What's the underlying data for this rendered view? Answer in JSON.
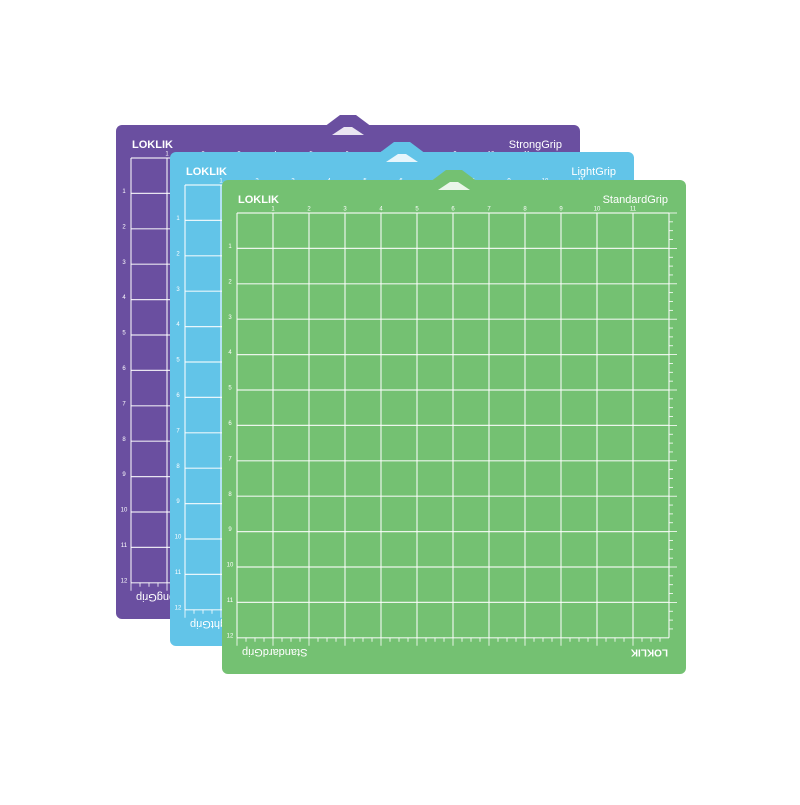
{
  "mats": [
    {
      "brand": "LOKLIK",
      "label": "StrongGrip",
      "color": "#6a4fa0"
    },
    {
      "brand": "LOKLIK",
      "label": "LightGrip",
      "color": "#62c4e8"
    },
    {
      "brand": "LOKLIK",
      "label": "StandardGrip",
      "color": "#74c172"
    }
  ],
  "ruler_numbers": [
    "1",
    "2",
    "3",
    "4",
    "5",
    "6",
    "7",
    "8",
    "9",
    "10",
    "11",
    "12"
  ]
}
